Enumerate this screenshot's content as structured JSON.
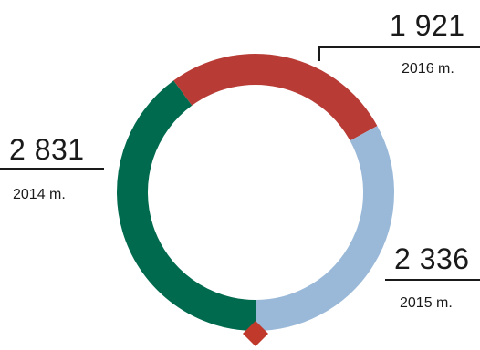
{
  "chart_data": {
    "type": "pie",
    "style": "donut",
    "slices": [
      {
        "label": "2014 m.",
        "value": 2831,
        "display": "2 831",
        "color": "#006a4e"
      },
      {
        "label": "2015 m.",
        "value": 2336,
        "display": "2 336",
        "color": "#9ab9d9"
      },
      {
        "label": "2016 m.",
        "value": 1921,
        "display": "1 921",
        "color": "#b83c35"
      }
    ],
    "marker_color": "#c0392b"
  }
}
